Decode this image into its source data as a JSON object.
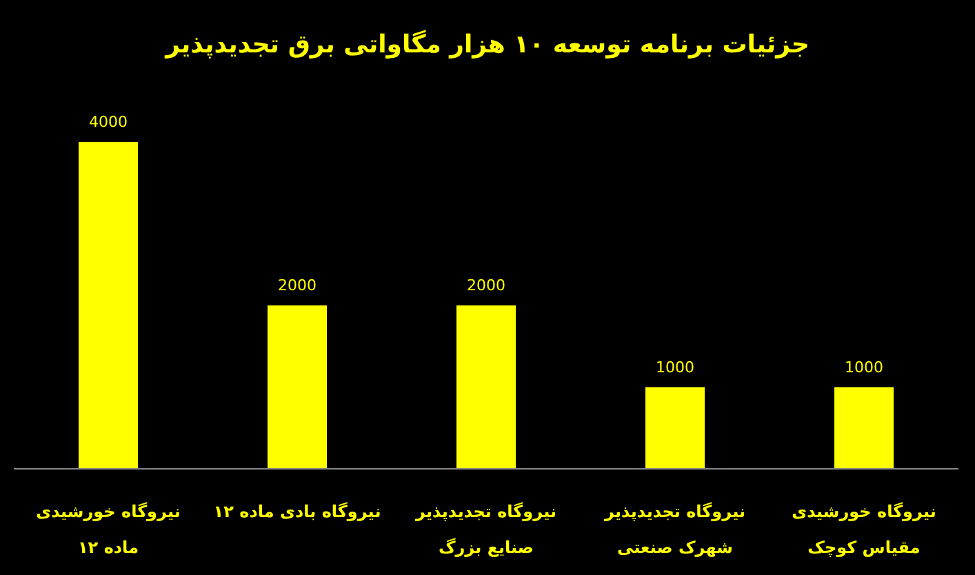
{
  "chart_data": {
    "type": "bar",
    "title": "جزئیات برنامه توسعه ۱۰ هزار مگاواتی برق تجدیدپذیر",
    "categories": [
      "نیروگاه خورشیدی ماده ۱۲",
      "نیروگاه بادی ماده ۱۲",
      "نیروگاه تجدیدپذیر صنایع بزرگ",
      "نیروگاه تجدیدپذیر شهرک صنعتی",
      "نیروگاه خورشیدی مقیاس کوچک"
    ],
    "values": [
      4000,
      2000,
      2000,
      1000,
      1000
    ],
    "color": "#ffff00",
    "data_labels": true
  }
}
